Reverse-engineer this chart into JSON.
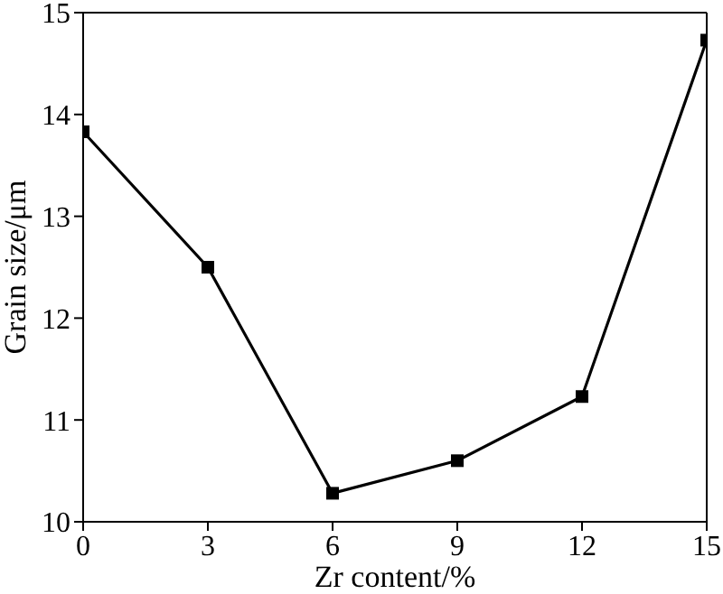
{
  "chart_data": {
    "type": "line",
    "xlabel": "Zr content/%",
    "ylabel": "Grain size/μm",
    "x": [
      0,
      3,
      6,
      9,
      12,
      15
    ],
    "series": [
      {
        "color": "#000000",
        "values": [
          13.83,
          12.5,
          10.28,
          10.6,
          11.23,
          14.73
        ]
      }
    ],
    "xlim": [
      0,
      15
    ],
    "xticks": [
      0,
      3,
      6,
      9,
      12,
      15
    ],
    "ylim": [
      10,
      15
    ],
    "yticks": [
      10,
      11,
      12,
      13,
      14,
      15
    ],
    "marker": "square",
    "line_style": "solid",
    "grid": false,
    "legend": false
  }
}
